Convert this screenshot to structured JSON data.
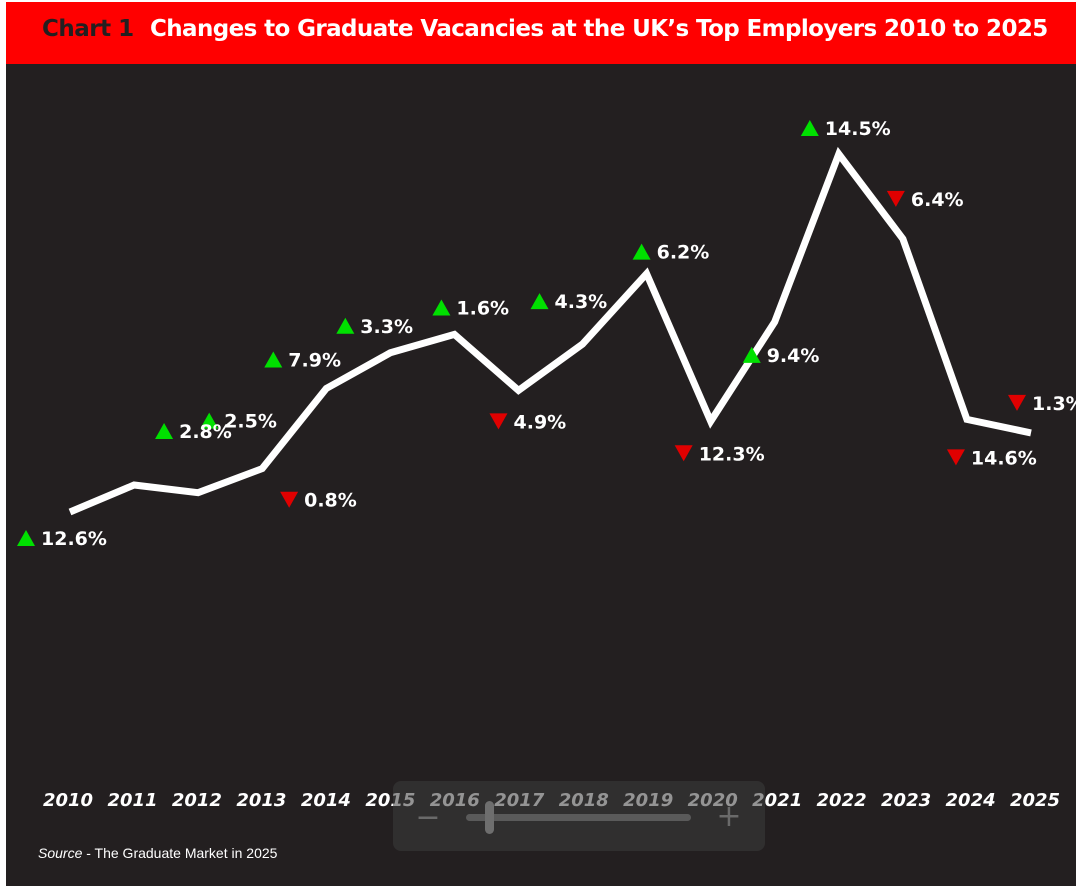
{
  "header": {
    "chart_label": "Chart 1",
    "title": "Changes to Graduate Vacancies at the UK’s Top Employers 2010 to 2025"
  },
  "source": {
    "prefix": "Source",
    "text": " - The Graduate Market in 2025"
  },
  "zoom_control": {
    "minus_label": "−",
    "plus_label": "+",
    "level": 0.1
  },
  "colors": {
    "background": "#231f20",
    "header": "#ff0000",
    "line": "#ffffff",
    "up": "#00e000",
    "down": "#e00000"
  },
  "chart_data": {
    "type": "line",
    "title": "Changes to Graduate Vacancies at the UK’s Top Employers 2010 to 2025",
    "xlabel": "",
    "ylabel": "",
    "grid": false,
    "legend": "none",
    "categories": [
      "2010",
      "2011",
      "2012",
      "2013",
      "2014",
      "2015",
      "2016",
      "2017",
      "2018",
      "2019",
      "2020",
      "2021",
      "2022",
      "2023",
      "2024",
      "2025"
    ],
    "series": [
      {
        "values": [
          100,
          102.8,
          102.0,
          104.5,
          112.8,
          116.5,
          118.4,
          112.6,
          117.4,
          124.7,
          109.4,
          119.7,
          137.1,
          128.3,
          109.6,
          108.2
        ],
        "changes": [
          12.6,
          2.8,
          -0.8,
          2.5,
          7.9,
          3.3,
          1.6,
          -4.9,
          4.3,
          6.2,
          -12.3,
          9.4,
          14.5,
          -6.4,
          -14.6,
          -1.3
        ],
        "labels": [
          "12.6%",
          "2.8%",
          "0.8%",
          "2.5%",
          "7.9%",
          "3.3%",
          "1.6%",
          "4.9%",
          "4.3%",
          "6.2%",
          "12.3%",
          "9.4%",
          "14.5%",
          "6.4%",
          "14.6%",
          "1.3%"
        ]
      }
    ],
    "ylim": [
      60,
      140
    ]
  }
}
